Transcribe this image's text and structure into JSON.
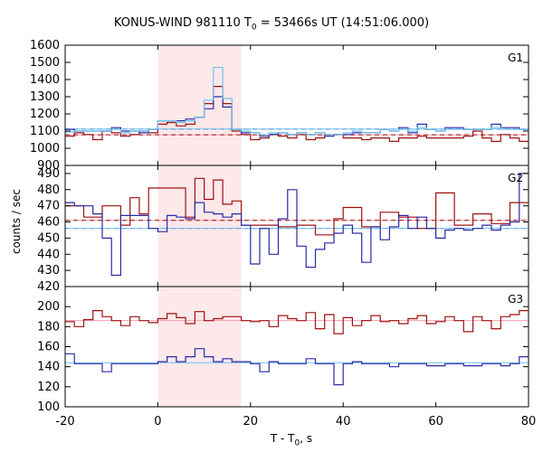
{
  "chart_data": {
    "type": "line",
    "title": "KONUS-WIND 981110 T",
    "title_sub": "0",
    "title_rest": " = 53466s UT (14:51:06.000)",
    "ylabel": "counts / sec",
    "xlabel": "T - T",
    "xlabel_sub": "0",
    "xlabel_rest": ", s",
    "xlim": [
      -20,
      80
    ],
    "xticks": [
      -20,
      0,
      20,
      40,
      60,
      80
    ],
    "highlight": {
      "x": [
        0,
        18
      ],
      "color": "#fde8ea"
    },
    "colors": {
      "red": "#a01010",
      "blue": "#2a2aa8",
      "cyan": "#6ec4f0",
      "pink": "#f1a0b0"
    },
    "panels": [
      {
        "label": "G1",
        "ylim": [
          900,
          1600
        ],
        "yticks": [
          900,
          1000,
          1100,
          1200,
          1300,
          1400,
          1500,
          1600
        ],
        "series": [
          {
            "color": "red",
            "x": [
              -20,
              -18,
              -16,
              -14,
              -12,
              -10,
              -8,
              -6,
              -4,
              -2,
              0,
              2,
              4,
              6,
              8,
              10,
              12,
              14,
              16,
              18,
              20,
              22,
              24,
              26,
              28,
              30,
              32,
              34,
              36,
              38,
              40,
              42,
              44,
              46,
              48,
              50,
              52,
              54,
              56,
              58,
              60,
              62,
              64,
              66,
              68,
              70,
              72,
              74,
              76,
              78,
              80
            ],
            "y": [
              1070,
              1090,
              1080,
              1050,
              1100,
              1090,
              1070,
              1080,
              1100,
              1090,
              1140,
              1150,
              1130,
              1140,
              1180,
              1260,
              1360,
              1260,
              1100,
              1080,
              1050,
              1060,
              1080,
              1070,
              1060,
              1080,
              1050,
              1060,
              1080,
              1080,
              1060,
              1060,
              1050,
              1060,
              1060,
              1040,
              1060,
              1060,
              1070,
              1060,
              1060,
              1060,
              1060,
              1070,
              1100,
              1060,
              1040,
              1080,
              1060,
              1040,
              1040
            ]
          },
          {
            "color": "blue",
            "x": [
              -20,
              -18,
              -16,
              -14,
              -12,
              -10,
              -8,
              -6,
              -4,
              -2,
              0,
              2,
              4,
              6,
              8,
              10,
              12,
              14,
              16,
              18,
              20,
              22,
              24,
              26,
              28,
              30,
              32,
              34,
              36,
              38,
              40,
              42,
              44,
              46,
              48,
              50,
              52,
              54,
              56,
              58,
              60,
              62,
              64,
              66,
              68,
              70,
              72,
              74,
              76,
              78,
              80
            ],
            "y": [
              1110,
              1100,
              1100,
              1100,
              1100,
              1120,
              1100,
              1100,
              1090,
              1110,
              1160,
              1160,
              1160,
              1170,
              1180,
              1230,
              1300,
              1240,
              1110,
              1090,
              1090,
              1070,
              1080,
              1090,
              1080,
              1090,
              1080,
              1090,
              1070,
              1080,
              1080,
              1090,
              1090,
              1090,
              1110,
              1100,
              1120,
              1090,
              1140,
              1110,
              1100,
              1120,
              1120,
              1110,
              1110,
              1110,
              1140,
              1120,
              1120,
              1110,
              1110
            ]
          },
          {
            "color": "cyan",
            "x": [
              -20,
              -18,
              -16,
              -14,
              -12,
              -10,
              -8,
              -6,
              -4,
              -2,
              0,
              2,
              4,
              6,
              8,
              10,
              12,
              14,
              16,
              18,
              20,
              22,
              24,
              26,
              28,
              30,
              32,
              34,
              36,
              38,
              40,
              42,
              44,
              46,
              48,
              50,
              52,
              54,
              56,
              58,
              60,
              62,
              64,
              66,
              68,
              70,
              72,
              74,
              76,
              78,
              80
            ],
            "y": [
              1095,
              1100,
              1100,
              1100,
              1100,
              1110,
              1090,
              1100,
              1100,
              1110,
              1160,
              1160,
              1150,
              1160,
              1180,
              1280,
              1470,
              1290,
              1110,
              1100,
              1090,
              1080,
              1090,
              1090,
              1080,
              1090,
              1080,
              1090,
              1080,
              1080,
              1090,
              1100,
              1090,
              1090,
              1110,
              1100,
              1110,
              1100,
              1120,
              1110,
              1100,
              1110,
              1110,
              1110,
              1110,
              1110,
              1120,
              1110,
              1110,
              1110,
              1110
            ]
          }
        ],
        "hlines": [
          {
            "color": "pink",
            "y": 1078,
            "dashed": false
          },
          {
            "color": "red",
            "y": 1078,
            "dashed": true
          },
          {
            "color": "blue",
            "y": 1112,
            "dashed": true
          },
          {
            "color": "cyan",
            "y": 1112,
            "dashed": false
          }
        ]
      },
      {
        "label": "G2",
        "ylim": [
          420,
          495
        ],
        "yticks": [
          420,
          430,
          440,
          450,
          460,
          470,
          480,
          490
        ],
        "series": [
          {
            "color": "red",
            "x": [
              -20,
              -16,
              -12,
              -8,
              -6,
              -4,
              -2,
              2,
              6,
              8,
              10,
              12,
              14,
              16,
              18,
              22,
              26,
              30,
              34,
              38,
              40,
              44,
              48,
              52,
              56,
              60,
              64,
              68,
              72,
              76,
              80
            ],
            "y": [
              470,
              463,
              470,
              458,
              475,
              465,
              481,
              481,
              463,
              487,
              474,
              486,
              471,
              473,
              458,
              458,
              457,
              458,
              452,
              462,
              469,
              457,
              466,
              463,
              456,
              478,
              458,
              465,
              459,
              472,
              468
            ]
          },
          {
            "color": "blue",
            "x": [
              -20,
              -18,
              -16,
              -14,
              -12,
              -10,
              -8,
              -6,
              -4,
              -2,
              0,
              2,
              4,
              6,
              8,
              10,
              12,
              14,
              16,
              18,
              20,
              22,
              24,
              26,
              28,
              30,
              32,
              34,
              36,
              38,
              40,
              42,
              44,
              46,
              48,
              50,
              52,
              54,
              56,
              58,
              60,
              62,
              64,
              66,
              68,
              70,
              72,
              74,
              76,
              78,
              80
            ],
            "y": [
              472,
              470,
              470,
              465,
              450,
              427,
              464,
              464,
              464,
              456,
              454,
              464,
              463,
              462,
              472,
              466,
              465,
              463,
              465,
              458,
              434,
              456,
              440,
              462,
              480,
              445,
              432,
              443,
              447,
              453,
              458,
              453,
              435,
              457,
              449,
              457,
              464,
              456,
              463,
              456,
              450,
              455,
              456,
              455,
              456,
              458,
              455,
              458,
              460,
              490,
              490
            ]
          }
        ],
        "hlines": [
          {
            "color": "pink",
            "y": 461,
            "dashed": false
          },
          {
            "color": "red",
            "y": 461,
            "dashed": true
          },
          {
            "color": "blue",
            "y": 456,
            "dashed": true
          },
          {
            "color": "cyan",
            "y": 456,
            "dashed": false
          }
        ]
      },
      {
        "label": "G3",
        "ylim": [
          100,
          220
        ],
        "yticks": [
          100,
          120,
          140,
          160,
          180,
          200
        ],
        "series": [
          {
            "color": "red",
            "x": [
              -20,
              -18,
              -16,
              -14,
              -12,
              -10,
              -8,
              -6,
              -4,
              -2,
              0,
              2,
              4,
              6,
              8,
              10,
              12,
              14,
              16,
              18,
              20,
              22,
              24,
              26,
              28,
              30,
              32,
              34,
              36,
              38,
              40,
              42,
              44,
              46,
              48,
              50,
              52,
              54,
              56,
              58,
              60,
              62,
              64,
              66,
              68,
              70,
              72,
              74,
              76,
              78,
              80
            ],
            "y": [
              185,
              180,
              187,
              196,
              190,
              186,
              181,
              190,
              186,
              184,
              188,
              193,
              189,
              183,
              195,
              186,
              188,
              190,
              190,
              186,
              185,
              186,
              180,
              191,
              188,
              186,
              194,
              178,
              192,
              173,
              189,
              181,
              186,
              191,
              185,
              186,
              183,
              188,
              191,
              183,
              185,
              190,
              186,
              175,
              190,
              186,
              178,
              190,
              192,
              196,
              180
            ]
          },
          {
            "color": "blue",
            "x": [
              -20,
              -18,
              -16,
              -14,
              -12,
              -10,
              -8,
              -6,
              -4,
              -2,
              0,
              2,
              4,
              6,
              8,
              10,
              12,
              14,
              16,
              18,
              20,
              22,
              24,
              26,
              28,
              30,
              32,
              34,
              36,
              38,
              40,
              42,
              44,
              46,
              48,
              50,
              52,
              54,
              56,
              58,
              60,
              62,
              64,
              66,
              68,
              70,
              72,
              74,
              76,
              78,
              80
            ],
            "y": [
              153,
              143,
              143,
              143,
              135,
              143,
              143,
              143,
              143,
              143,
              145,
              150,
              145,
              150,
              158,
              150,
              145,
              148,
              145,
              145,
              143,
              135,
              145,
              143,
              143,
              143,
              148,
              143,
              143,
              122,
              143,
              145,
              143,
              143,
              143,
              140,
              143,
              143,
              143,
              141,
              141,
              143,
              143,
              141,
              141,
              143,
              143,
              141,
              143,
              150,
              150
            ]
          }
        ],
        "hlines": [
          {
            "color": "pink",
            "y": 186,
            "dashed": false
          },
          {
            "color": "cyan",
            "y": 144,
            "dashed": false
          }
        ]
      }
    ]
  }
}
